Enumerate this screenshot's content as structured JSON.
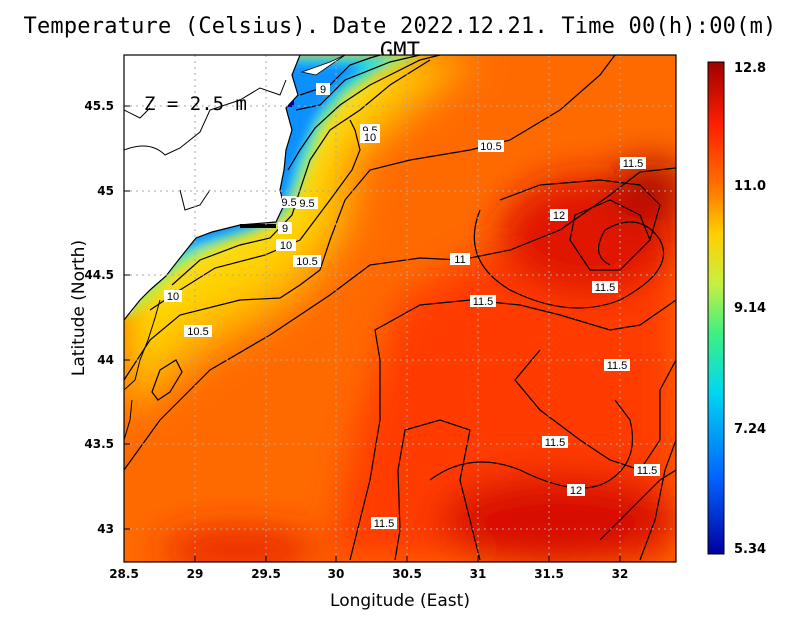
{
  "title": "Temperature (Celsius). Date 2022.12.21. Time 00(h):00(m) GMT",
  "depth_label": "Z = 2.5 m",
  "axes": {
    "xlabel": "Longitude (East)",
    "ylabel": "Latitude (North)",
    "xlim": [
      28.5,
      32.4
    ],
    "ylim": [
      42.8,
      45.8
    ],
    "x_ticks": [
      "28.5",
      "29",
      "29.5",
      "30",
      "30.5",
      "31",
      "31.5",
      "32"
    ],
    "y_ticks": [
      "43",
      "43.5",
      "44",
      "44.5",
      "45",
      "45.5"
    ],
    "grid": "dotted"
  },
  "colorbar": {
    "ticks": [
      "12.8",
      "11.0",
      "9.14",
      "7.24",
      "5.34"
    ],
    "min": 5.34,
    "max": 12.8,
    "colors": [
      "#0000a0",
      "#0060ff",
      "#00d8f0",
      "#40f080",
      "#c8f040",
      "#ffd000",
      "#ff7000",
      "#ff2000",
      "#a00000"
    ]
  },
  "contour_labels": [
    "9",
    "9.5",
    "10",
    "9.5",
    "10.5",
    "11.5",
    "12",
    "9.5",
    "9",
    "10",
    "10.5",
    "11",
    "11.5",
    "11.5",
    "10",
    "10.5",
    "11.5",
    "11.5",
    "11.5",
    "12",
    "11.5"
  ],
  "chart_data": {
    "type": "heatmap",
    "title": "Temperature (Celsius). Date 2022.12.21. Time 00(h):00(m) GMT",
    "xlabel": "Longitude (East)",
    "ylabel": "Latitude (North)",
    "xlim": [
      28.5,
      32.4
    ],
    "ylim": [
      42.8,
      45.8
    ],
    "value_range": [
      5.34,
      12.8
    ],
    "contour_levels": [
      9,
      9.5,
      10,
      10.5,
      11,
      11.5,
      12
    ]
  }
}
